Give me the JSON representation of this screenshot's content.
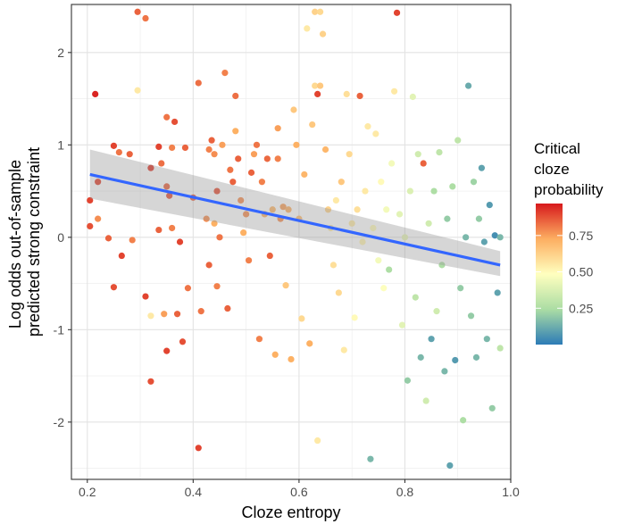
{
  "chart_data": {
    "type": "scatter",
    "xlabel": "Cloze entropy",
    "ylabel_lines": [
      "Log odds out-of-sample",
      "predicted strong constraint"
    ],
    "xlim": [
      0.17,
      1.0
    ],
    "ylim": [
      -2.62,
      2.52
    ],
    "x_ticks": [
      0.2,
      0.4,
      0.6,
      0.8,
      1.0
    ],
    "x_tick_labels": [
      "0.2",
      "0.4",
      "0.6",
      "0.8",
      "1.0"
    ],
    "y_ticks": [
      -2,
      -1,
      0,
      1,
      2
    ],
    "y_tick_labels": [
      "-2",
      "-1",
      "0",
      "1",
      "2"
    ],
    "grid": true,
    "legend": {
      "title_lines": [
        "Critical",
        "cloze",
        "probability"
      ],
      "position": "right",
      "ticks": [
        0.25,
        0.5,
        0.75
      ],
      "tick_labels": [
        "0.25",
        "0.50",
        "0.75"
      ],
      "range": [
        0.0,
        0.97
      ],
      "colors": [
        "#2C7BB6",
        "#ABDDA4",
        "#FFFFBF",
        "#FDAE61",
        "#D7191C"
      ]
    },
    "trend_line": {
      "x": [
        0.205,
        0.98
      ],
      "y": [
        0.68,
        -0.3
      ],
      "ci_lower": [
        0.42,
        -0.42
      ],
      "ci_upper": [
        0.95,
        -0.15
      ],
      "color": "#3366FF",
      "band_color": "#999999"
    },
    "points": [
      {
        "x": 0.205,
        "y": 0.4,
        "p": 0.9
      },
      {
        "x": 0.205,
        "y": 0.12,
        "p": 0.88
      },
      {
        "x": 0.215,
        "y": 1.55,
        "p": 0.95
      },
      {
        "x": 0.22,
        "y": 0.6,
        "p": 0.9
      },
      {
        "x": 0.22,
        "y": 0.2,
        "p": 0.78
      },
      {
        "x": 0.24,
        "y": -0.01,
        "p": 0.85
      },
      {
        "x": 0.25,
        "y": 0.99,
        "p": 0.9
      },
      {
        "x": 0.25,
        "y": -0.54,
        "p": 0.88
      },
      {
        "x": 0.26,
        "y": 0.92,
        "p": 0.82
      },
      {
        "x": 0.265,
        "y": -0.2,
        "p": 0.9
      },
      {
        "x": 0.28,
        "y": 0.9,
        "p": 0.85
      },
      {
        "x": 0.285,
        "y": -0.03,
        "p": 0.8
      },
      {
        "x": 0.295,
        "y": 1.59,
        "p": 0.55
      },
      {
        "x": 0.295,
        "y": 2.44,
        "p": 0.85
      },
      {
        "x": 0.31,
        "y": 2.37,
        "p": 0.82
      },
      {
        "x": 0.31,
        "y": -0.64,
        "p": 0.9
      },
      {
        "x": 0.32,
        "y": 0.75,
        "p": 0.92
      },
      {
        "x": 0.32,
        "y": -1.56,
        "p": 0.88
      },
      {
        "x": 0.32,
        "y": -0.85,
        "p": 0.55
      },
      {
        "x": 0.335,
        "y": 0.98,
        "p": 0.9
      },
      {
        "x": 0.335,
        "y": 0.08,
        "p": 0.85
      },
      {
        "x": 0.34,
        "y": 0.8,
        "p": 0.83
      },
      {
        "x": 0.345,
        "y": -0.83,
        "p": 0.75
      },
      {
        "x": 0.35,
        "y": 0.55,
        "p": 0.85
      },
      {
        "x": 0.35,
        "y": -1.23,
        "p": 0.9
      },
      {
        "x": 0.35,
        "y": 1.3,
        "p": 0.82
      },
      {
        "x": 0.355,
        "y": 0.45,
        "p": 0.88
      },
      {
        "x": 0.36,
        "y": 0.1,
        "p": 0.8
      },
      {
        "x": 0.36,
        "y": 0.97,
        "p": 0.8
      },
      {
        "x": 0.365,
        "y": 1.25,
        "p": 0.88
      },
      {
        "x": 0.37,
        "y": -0.83,
        "p": 0.85
      },
      {
        "x": 0.375,
        "y": -0.05,
        "p": 0.9
      },
      {
        "x": 0.38,
        "y": -1.13,
        "p": 0.88
      },
      {
        "x": 0.385,
        "y": 0.97,
        "p": 0.85
      },
      {
        "x": 0.39,
        "y": -0.55,
        "p": 0.82
      },
      {
        "x": 0.4,
        "y": 0.43,
        "p": 0.86
      },
      {
        "x": 0.41,
        "y": 1.67,
        "p": 0.83
      },
      {
        "x": 0.41,
        "y": -2.28,
        "p": 0.9
      },
      {
        "x": 0.415,
        "y": -0.8,
        "p": 0.82
      },
      {
        "x": 0.425,
        "y": 0.2,
        "p": 0.78
      },
      {
        "x": 0.43,
        "y": -0.3,
        "p": 0.85
      },
      {
        "x": 0.43,
        "y": 0.95,
        "p": 0.8
      },
      {
        "x": 0.435,
        "y": 1.05,
        "p": 0.85
      },
      {
        "x": 0.44,
        "y": 0.15,
        "p": 0.72
      },
      {
        "x": 0.44,
        "y": 0.9,
        "p": 0.78
      },
      {
        "x": 0.445,
        "y": 0.5,
        "p": 0.88
      },
      {
        "x": 0.445,
        "y": -0.53,
        "p": 0.8
      },
      {
        "x": 0.45,
        "y": 0.0,
        "p": 0.82
      },
      {
        "x": 0.455,
        "y": 1.0,
        "p": 0.75
      },
      {
        "x": 0.46,
        "y": 1.78,
        "p": 0.8
      },
      {
        "x": 0.465,
        "y": -0.77,
        "p": 0.85
      },
      {
        "x": 0.47,
        "y": 0.73,
        "p": 0.82
      },
      {
        "x": 0.475,
        "y": 0.6,
        "p": 0.85
      },
      {
        "x": 0.48,
        "y": 1.53,
        "p": 0.83
      },
      {
        "x": 0.48,
        "y": 1.15,
        "p": 0.72
      },
      {
        "x": 0.485,
        "y": 0.85,
        "p": 0.85
      },
      {
        "x": 0.49,
        "y": 0.4,
        "p": 0.78
      },
      {
        "x": 0.495,
        "y": 0.05,
        "p": 0.72
      },
      {
        "x": 0.5,
        "y": 0.25,
        "p": 0.78
      },
      {
        "x": 0.505,
        "y": -0.25,
        "p": 0.8
      },
      {
        "x": 0.51,
        "y": 0.7,
        "p": 0.85
      },
      {
        "x": 0.515,
        "y": 0.9,
        "p": 0.75
      },
      {
        "x": 0.52,
        "y": 1.0,
        "p": 0.82
      },
      {
        "x": 0.525,
        "y": -1.1,
        "p": 0.8
      },
      {
        "x": 0.53,
        "y": 0.6,
        "p": 0.8
      },
      {
        "x": 0.535,
        "y": 0.25,
        "p": 0.72
      },
      {
        "x": 0.54,
        "y": 0.85,
        "p": 0.84
      },
      {
        "x": 0.545,
        "y": -0.2,
        "p": 0.85
      },
      {
        "x": 0.55,
        "y": 0.3,
        "p": 0.7
      },
      {
        "x": 0.555,
        "y": -1.27,
        "p": 0.72
      },
      {
        "x": 0.56,
        "y": 1.18,
        "p": 0.75
      },
      {
        "x": 0.56,
        "y": 0.85,
        "p": 0.8
      },
      {
        "x": 0.565,
        "y": 0.2,
        "p": 0.78
      },
      {
        "x": 0.57,
        "y": 0.33,
        "p": 0.75
      },
      {
        "x": 0.575,
        "y": -0.52,
        "p": 0.65
      },
      {
        "x": 0.58,
        "y": 0.3,
        "p": 0.72
      },
      {
        "x": 0.585,
        "y": -1.32,
        "p": 0.72
      },
      {
        "x": 0.59,
        "y": 1.38,
        "p": 0.65
      },
      {
        "x": 0.595,
        "y": 1.0,
        "p": 0.72
      },
      {
        "x": 0.6,
        "y": 0.2,
        "p": 0.68
      },
      {
        "x": 0.605,
        "y": -0.88,
        "p": 0.6
      },
      {
        "x": 0.61,
        "y": 0.68,
        "p": 0.7
      },
      {
        "x": 0.615,
        "y": 2.26,
        "p": 0.55
      },
      {
        "x": 0.62,
        "y": -1.15,
        "p": 0.72
      },
      {
        "x": 0.625,
        "y": 1.22,
        "p": 0.65
      },
      {
        "x": 0.63,
        "y": 2.44,
        "p": 0.62
      },
      {
        "x": 0.63,
        "y": 1.64,
        "p": 0.6
      },
      {
        "x": 0.635,
        "y": -2.2,
        "p": 0.55
      },
      {
        "x": 0.635,
        "y": 1.55,
        "p": 0.9
      },
      {
        "x": 0.64,
        "y": 2.44,
        "p": 0.6
      },
      {
        "x": 0.64,
        "y": 1.64,
        "p": 0.65
      },
      {
        "x": 0.645,
        "y": 2.2,
        "p": 0.62
      },
      {
        "x": 0.65,
        "y": 0.95,
        "p": 0.7
      },
      {
        "x": 0.655,
        "y": 0.3,
        "p": 0.62
      },
      {
        "x": 0.66,
        "y": 0.1,
        "p": 0.55
      },
      {
        "x": 0.665,
        "y": -0.3,
        "p": 0.58
      },
      {
        "x": 0.67,
        "y": 0.4,
        "p": 0.55
      },
      {
        "x": 0.675,
        "y": -0.6,
        "p": 0.6
      },
      {
        "x": 0.68,
        "y": 0.6,
        "p": 0.65
      },
      {
        "x": 0.685,
        "y": -1.22,
        "p": 0.55
      },
      {
        "x": 0.69,
        "y": 1.55,
        "p": 0.58
      },
      {
        "x": 0.695,
        "y": 0.9,
        "p": 0.6
      },
      {
        "x": 0.7,
        "y": 0.15,
        "p": 0.55
      },
      {
        "x": 0.705,
        "y": -0.87,
        "p": 0.5
      },
      {
        "x": 0.71,
        "y": 0.3,
        "p": 0.58
      },
      {
        "x": 0.715,
        "y": 1.53,
        "p": 0.85
      },
      {
        "x": 0.72,
        "y": -0.05,
        "p": 0.52
      },
      {
        "x": 0.725,
        "y": 0.5,
        "p": 0.55
      },
      {
        "x": 0.73,
        "y": 1.2,
        "p": 0.55
      },
      {
        "x": 0.735,
        "y": -2.4,
        "p": 0.15
      },
      {
        "x": 0.74,
        "y": 0.1,
        "p": 0.5
      },
      {
        "x": 0.745,
        "y": 1.12,
        "p": 0.55
      },
      {
        "x": 0.75,
        "y": -0.25,
        "p": 0.45
      },
      {
        "x": 0.755,
        "y": 0.6,
        "p": 0.5
      },
      {
        "x": 0.76,
        "y": -0.55,
        "p": 0.48
      },
      {
        "x": 0.765,
        "y": 0.3,
        "p": 0.45
      },
      {
        "x": 0.77,
        "y": -0.35,
        "p": 0.25
      },
      {
        "x": 0.775,
        "y": 0.8,
        "p": 0.45
      },
      {
        "x": 0.78,
        "y": 1.58,
        "p": 0.55
      },
      {
        "x": 0.785,
        "y": 2.43,
        "p": 0.9
      },
      {
        "x": 0.79,
        "y": 0.25,
        "p": 0.4
      },
      {
        "x": 0.795,
        "y": -0.95,
        "p": 0.4
      },
      {
        "x": 0.8,
        "y": 0.0,
        "p": 0.42
      },
      {
        "x": 0.805,
        "y": -1.55,
        "p": 0.2
      },
      {
        "x": 0.81,
        "y": 0.5,
        "p": 0.38
      },
      {
        "x": 0.815,
        "y": 1.52,
        "p": 0.4
      },
      {
        "x": 0.82,
        "y": -0.65,
        "p": 0.3
      },
      {
        "x": 0.825,
        "y": 0.9,
        "p": 0.35
      },
      {
        "x": 0.83,
        "y": -1.3,
        "p": 0.15
      },
      {
        "x": 0.835,
        "y": 0.8,
        "p": 0.85
      },
      {
        "x": 0.84,
        "y": -1.77,
        "p": 0.35
      },
      {
        "x": 0.845,
        "y": 0.15,
        "p": 0.35
      },
      {
        "x": 0.85,
        "y": -1.1,
        "p": 0.1
      },
      {
        "x": 0.855,
        "y": 0.5,
        "p": 0.25
      },
      {
        "x": 0.86,
        "y": -0.8,
        "p": 0.35
      },
      {
        "x": 0.865,
        "y": 0.92,
        "p": 0.3
      },
      {
        "x": 0.87,
        "y": -0.3,
        "p": 0.25
      },
      {
        "x": 0.875,
        "y": -1.45,
        "p": 0.15
      },
      {
        "x": 0.88,
        "y": 0.2,
        "p": 0.2
      },
      {
        "x": 0.885,
        "y": -2.47,
        "p": 0.1
      },
      {
        "x": 0.89,
        "y": 0.55,
        "p": 0.25
      },
      {
        "x": 0.895,
        "y": -1.33,
        "p": 0.08
      },
      {
        "x": 0.9,
        "y": 1.05,
        "p": 0.3
      },
      {
        "x": 0.905,
        "y": -0.55,
        "p": 0.2
      },
      {
        "x": 0.91,
        "y": -1.98,
        "p": 0.25
      },
      {
        "x": 0.915,
        "y": 0.0,
        "p": 0.15
      },
      {
        "x": 0.92,
        "y": 1.64,
        "p": 0.12
      },
      {
        "x": 0.925,
        "y": -0.85,
        "p": 0.2
      },
      {
        "x": 0.93,
        "y": 0.6,
        "p": 0.22
      },
      {
        "x": 0.935,
        "y": -1.3,
        "p": 0.15
      },
      {
        "x": 0.94,
        "y": 0.2,
        "p": 0.2
      },
      {
        "x": 0.945,
        "y": 0.75,
        "p": 0.1
      },
      {
        "x": 0.95,
        "y": -0.05,
        "p": 0.1
      },
      {
        "x": 0.955,
        "y": -1.1,
        "p": 0.15
      },
      {
        "x": 0.96,
        "y": 0.35,
        "p": 0.08
      },
      {
        "x": 0.965,
        "y": -1.85,
        "p": 0.2
      },
      {
        "x": 0.97,
        "y": 0.02,
        "p": 0.05
      },
      {
        "x": 0.975,
        "y": -0.6,
        "p": 0.1
      },
      {
        "x": 0.98,
        "y": -1.2,
        "p": 0.3
      },
      {
        "x": 0.98,
        "y": 0.0,
        "p": 0.15
      }
    ]
  }
}
